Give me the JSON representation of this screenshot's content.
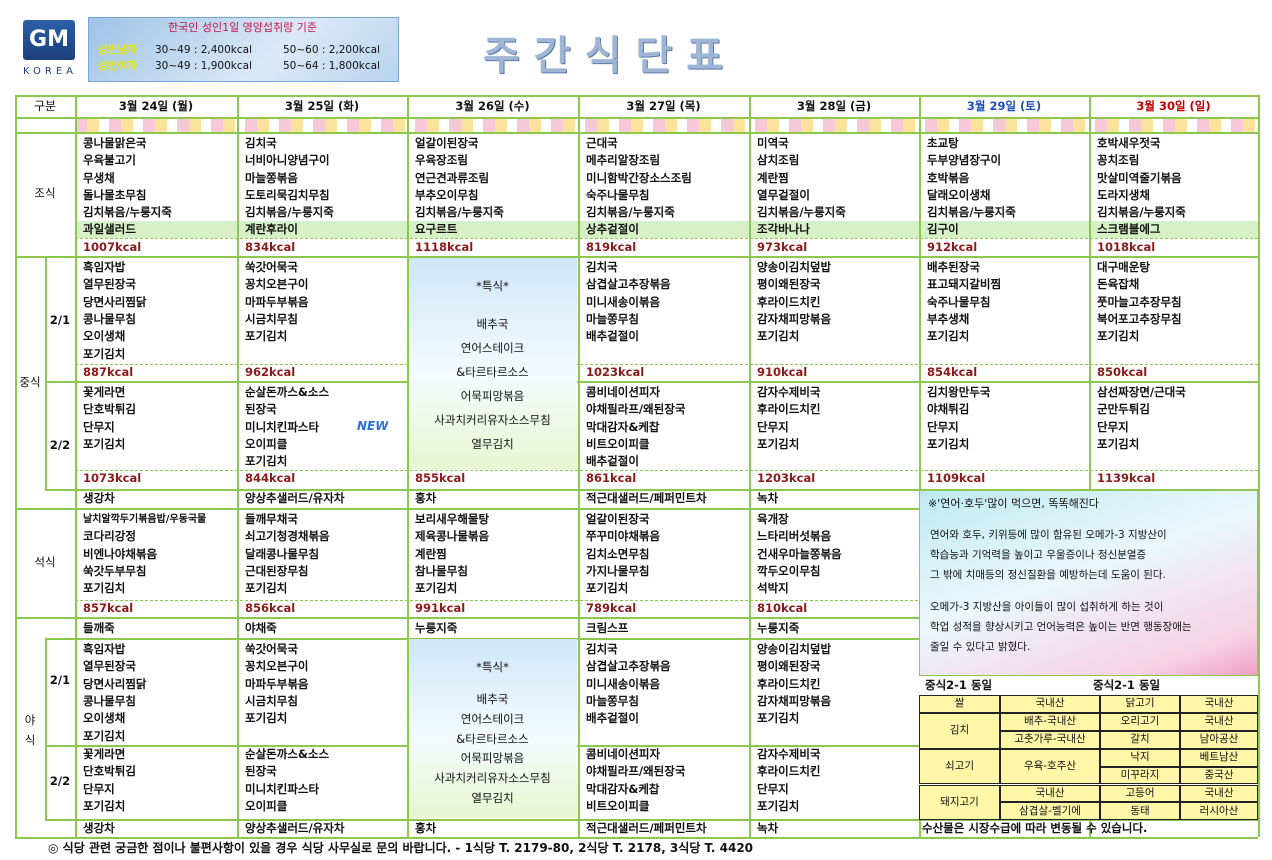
{
  "header": {
    "logo": "GM",
    "logo_sub": "KOREA",
    "title": "주간식단표",
    "nutrition": {
      "title": "한국인 성인1일 영양섭취량 기준",
      "rows": [
        {
          "label": "성인남자",
          "a": "30~49 : 2,400kcal",
          "b": "50~60 : 2,200kcal"
        },
        {
          "label": "성인여자",
          "a": "30~49 : 1,900kcal",
          "b": "50~64 : 1,800kcal"
        }
      ]
    }
  },
  "table": {
    "corner": "구분",
    "days": [
      "3월 24일 (월)",
      "3월 25일 (화)",
      "3월 26일 (수)",
      "3월 27일 (목)",
      "3월 28일 (금)",
      "3월 29일 (토)",
      "3월 30일 (일)"
    ],
    "breakfast": {
      "label": "조식",
      "cells": [
        {
          "items": [
            "콩나물맑은국",
            "우육불고기",
            "무생채",
            "돌나물초무침",
            "김치볶음/누룽지죽"
          ],
          "extra": "과일샐러드",
          "kcal": "1007kcal"
        },
        {
          "items": [
            "김치국",
            "너비아니양념구이",
            "마늘쫑볶음",
            "도토리묵김치무침",
            "김치볶음/누룽지죽"
          ],
          "extra": "계란후라이",
          "kcal": "834kcal"
        },
        {
          "items": [
            "얼갈이된장국",
            "우육장조림",
            "연근견과류조림",
            "부추오이무침",
            "김치볶음/누룽지죽"
          ],
          "extra": "요구르트",
          "kcal": "1118kcal"
        },
        {
          "items": [
            "근대국",
            "메추리알장조림",
            "미니함박간장소스조림",
            "숙주나물무침",
            "김치볶음/누룽지죽"
          ],
          "extra": "상추겉절이",
          "kcal": "819kcal"
        },
        {
          "items": [
            "미역국",
            "삼치조림",
            "계란찜",
            "열무겉절이",
            "김치볶음/누룽지죽"
          ],
          "extra": "조각바나나",
          "kcal": "973kcal"
        },
        {
          "items": [
            "초교탕",
            "두부양념장구이",
            "호박볶음",
            "달래오이생채",
            "김치볶음/누룽지죽"
          ],
          "extra": "김구이",
          "kcal": "912kcal"
        },
        {
          "items": [
            "호박새우젓국",
            "꽁치조림",
            "맛살미역줄기볶음",
            "도라지생채",
            "김치볶음/누룽지죽"
          ],
          "extra": "스크램블에그",
          "kcal": "1018kcal"
        }
      ]
    },
    "lunch": {
      "label": "중식",
      "parts": [
        "2/1",
        "2/2"
      ],
      "columns": [
        {
          "a": {
            "items": [
              "흑임자밥",
              "열무된장국",
              "당면사리찜닭",
              "콩나물무침",
              "오이생채",
              "포기김치"
            ],
            "kcal": "887kcal"
          },
          "b": {
            "items": [
              "꽃게라면",
              "단호박튀김",
              "단무지",
              "포기김치"
            ],
            "kcal": "1073kcal"
          },
          "drink": "생강차"
        },
        {
          "a": {
            "items": [
              "쑥갓어묵국",
              "꽁치오븐구이",
              "마파두부볶음",
              "시금치무침",
              "포기김치"
            ],
            "kcal": "962kcal"
          },
          "b": {
            "items": [
              "순살돈까스&소스",
              "된장국",
              "미니치킨파스타",
              "오이피클",
              "포기김치"
            ],
            "kcal": "844kcal",
            "badge": "NEW"
          },
          "drink": "양상추샐러드/유자차"
        },
        {
          "special": [
            "*특식*",
            "배추국",
            "연어스테이크",
            "&타르타르소스",
            "어묵피망볶음",
            "사과치커리유자소스무침",
            "열무김치"
          ],
          "kcal": "855kcal",
          "drink": "홍차"
        },
        {
          "a": {
            "items": [
              "김치국",
              "삼겹살고추장볶음",
              "미니새송이볶음",
              "마늘쫑무침",
              "배추겉절이"
            ],
            "kcal": "1023kcal"
          },
          "b": {
            "items": [
              "콤비네이션피자",
              "야채필라프/왜된장국",
              "막대감자&케찹",
              "비트오이피클",
              "배추겉절이"
            ],
            "kcal": "861kcal"
          },
          "drink": "적근대샐러드/페퍼민트차"
        },
        {
          "a": {
            "items": [
              "양송이김치덮밥",
              "평이왜된장국",
              "후라이드치킨",
              "감자채피망볶음",
              "포기김치"
            ],
            "kcal": "910kcal"
          },
          "b": {
            "items": [
              "감자수제비국",
              "후라이드치킨",
              "단무지",
              "포기김치"
            ],
            "kcal": "1203kcal"
          },
          "drink": "녹차"
        },
        {
          "a": {
            "items": [
              "배추된장국",
              "표고돼지갈비찜",
              "숙주나물무침",
              "부추생채",
              "포기김치"
            ],
            "kcal": "854kcal"
          },
          "b": {
            "items": [
              "김치왕만두국",
              "야채튀김",
              "단무지",
              "포기김치"
            ],
            "kcal": "1109kcal"
          }
        },
        {
          "a": {
            "items": [
              "대구매운탕",
              "돈육잡채",
              "풋마늘고추장무침",
              "북어포고추장무침",
              "포기김치"
            ],
            "kcal": "850kcal"
          },
          "b": {
            "items": [
              "삼선짜장면/근대국",
              "군만두튀김",
              "단무지",
              "포기김치"
            ],
            "kcal": "1139kcal"
          }
        }
      ]
    },
    "dinner": {
      "label": "석식",
      "cells": [
        {
          "items": [
            "날치알깍두기볶음밥/우동국물",
            "코다리강정",
            "비엔나야채볶음",
            "쑥갓두부무침",
            "포기김치"
          ],
          "kcal": "857kcal"
        },
        {
          "items": [
            "들깨무채국",
            "쇠고기청경채볶음",
            "달래콩나물무침",
            "근대된장무침",
            "포기김치"
          ],
          "kcal": "856kcal"
        },
        {
          "items": [
            "보리새우해물탕",
            "제육콩나물볶음",
            "계란찜",
            "참나물무침",
            "포기김치"
          ],
          "kcal": "991kcal"
        },
        {
          "items": [
            "얼갈이된장국",
            "쭈꾸미야채볶음",
            "김치소면무침",
            "가지나물무침",
            "포기김치"
          ],
          "kcal": "789kcal"
        },
        {
          "items": [
            "육개장",
            "느타리버섯볶음",
            "건새우마늘쫑볶음",
            "깍두오이무침",
            "석박지"
          ],
          "kcal": "810kcal"
        }
      ]
    },
    "late": {
      "label": "야식",
      "parts": [
        "2/1",
        "2/2"
      ],
      "columns": [
        {
          "porridge": "들깨죽",
          "a": [
            "흑임자밥",
            "열무된장국",
            "당면사리찜닭",
            "콩나물무침",
            "오이생채",
            "포기김치"
          ],
          "b": [
            "꽃게라면",
            "단호박튀김",
            "단무지",
            "포기김치"
          ],
          "drink": "생강차"
        },
        {
          "porridge": "야채죽",
          "a": [
            "쑥갓어묵국",
            "꽁치오븐구이",
            "마파두부볶음",
            "시금치무침",
            "포기김치"
          ],
          "b": [
            "순살돈까스&소스",
            "된장국",
            "미니치킨파스타",
            "오이피클"
          ],
          "drink": "양상추샐러드/유자차"
        },
        {
          "porridge": "누룽지죽",
          "special": [
            "*특식*",
            "배추국",
            "연어스테이크",
            "&타르타르소스",
            "어묵피망볶음",
            "사과치커리유자소스무침",
            "열무김치"
          ],
          "drink": "홍차"
        },
        {
          "porridge": "크림스프",
          "a": [
            "김치국",
            "삼겹살고추장볶음",
            "미니새송이볶음",
            "마늘쫑무침",
            "배추겉절이"
          ],
          "b": [
            "콤비네이션피자",
            "야채필라프/왜된장국",
            "막대감자&케찹",
            "비트오이피클"
          ],
          "drink": "적근대샐러드/페퍼민트차"
        },
        {
          "porridge": "누룽지죽",
          "a": [
            "양송이김치덮밥",
            "평이왜된장국",
            "후라이드치킨",
            "감자채피망볶음",
            "포기김치"
          ],
          "b": [
            "감자수제비국",
            "후라이드치킨",
            "단무지",
            "포기김치"
          ],
          "drink": "녹차"
        }
      ]
    }
  },
  "info": {
    "title": "※'연어·호두'많이 먹으면, 똑똑해진다",
    "paragraphs": [
      [
        "연어와 호두, 키위등에 많이 함유된 오메가-3 지방산이",
        "학습능과 기억력을 높이고 우울증이나 정신분열증",
        "그 밖에 치매등의 정신질환을 예방하는데 도움이 된다."
      ],
      [
        "오메가-3 지방산을 아이들이 많이 섭취하게 하는 것이",
        "학업 성적을 향상시키고 언어능력은 높이는 반면 행동장애는",
        "줄일 수 있다고 밝혔다."
      ]
    ]
  },
  "origin": {
    "notes": [
      "중식2-1 동일",
      "중식2-1 동일"
    ],
    "left": [
      {
        "item": "쌀",
        "sources": [
          "국내산"
        ]
      },
      {
        "item": "김치",
        "sources": [
          "배추-국내산",
          "고춧가루-국내산"
        ]
      },
      {
        "item": "쇠고기",
        "sources": [
          "우육-호주산"
        ]
      },
      {
        "item": "돼지고기",
        "sources": [
          "국내산",
          "삼겹살-벨기에"
        ]
      }
    ],
    "right": [
      {
        "item": "닭고기",
        "source": "국내산"
      },
      {
        "item": "오리고기",
        "source": "국내산"
      },
      {
        "item": "갈치",
        "source": "남아공산"
      },
      {
        "item": "낙지",
        "source": "베트남산"
      },
      {
        "item": "미꾸라지",
        "source": "중국산"
      },
      {
        "item": "고등어",
        "source": "국내산"
      },
      {
        "item": "동태",
        "source": "러시아산"
      }
    ],
    "footnote": "수산물은 시장수급에 따라 변동될 수 있습니다."
  },
  "footer": "◎ 식당 관련 궁금한 점이나 불편사항이 있을 경우 식당 사무실로 문의 바랍니다. - 1식당 T. 2179-80,  2식당 T. 2178,  3식당 T. 4420"
}
